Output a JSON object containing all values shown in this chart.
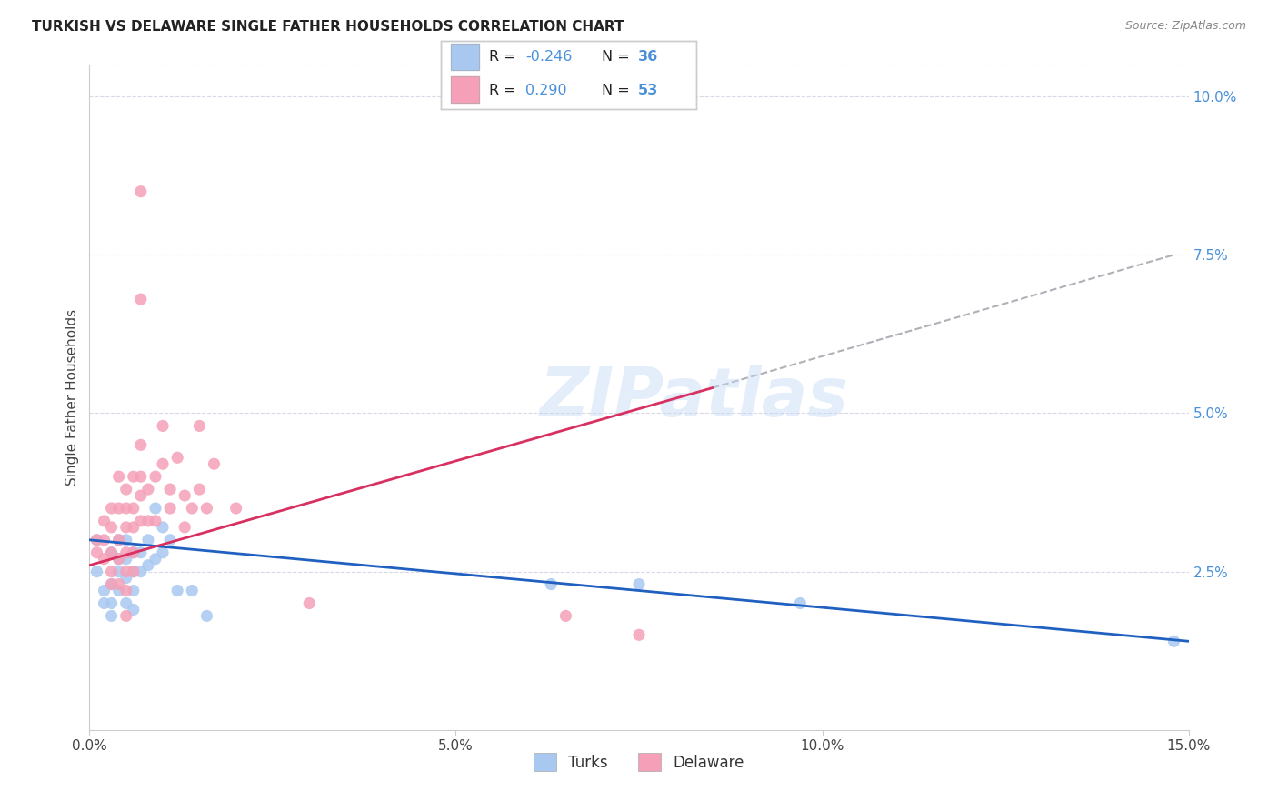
{
  "title": "TURKISH VS DELAWARE SINGLE FATHER HOUSEHOLDS CORRELATION CHART",
  "source": "Source: ZipAtlas.com",
  "ylabel": "Single Father Households",
  "xlabel_turks": "Turks",
  "xlabel_delaware": "Delaware",
  "watermark": "ZIPatlas",
  "xlim": [
    0.0,
    0.15
  ],
  "ylim": [
    0.0,
    0.105
  ],
  "xticks": [
    0.0,
    0.05,
    0.1,
    0.15
  ],
  "yticks_right": [
    0.025,
    0.05,
    0.075,
    0.1
  ],
  "ytick_labels_right": [
    "2.5%",
    "5.0%",
    "7.5%",
    "10.0%"
  ],
  "xtick_labels": [
    "0.0%",
    "5.0%",
    "10.0%",
    "15.0%"
  ],
  "turks_color": "#a8c8f0",
  "delaware_color": "#f5a0b8",
  "turks_line_color": "#2060c0",
  "delaware_line_color": "#d83060",
  "background_color": "#ffffff",
  "grid_color": "#d8d8e8",
  "turks_scatter": [
    [
      0.001,
      0.03
    ],
    [
      0.001,
      0.025
    ],
    [
      0.002,
      0.022
    ],
    [
      0.002,
      0.02
    ],
    [
      0.003,
      0.028
    ],
    [
      0.003,
      0.023
    ],
    [
      0.003,
      0.02
    ],
    [
      0.003,
      0.018
    ],
    [
      0.004,
      0.03
    ],
    [
      0.004,
      0.027
    ],
    [
      0.004,
      0.025
    ],
    [
      0.004,
      0.022
    ],
    [
      0.005,
      0.03
    ],
    [
      0.005,
      0.027
    ],
    [
      0.005,
      0.024
    ],
    [
      0.005,
      0.02
    ],
    [
      0.006,
      0.028
    ],
    [
      0.006,
      0.025
    ],
    [
      0.006,
      0.022
    ],
    [
      0.006,
      0.019
    ],
    [
      0.007,
      0.028
    ],
    [
      0.007,
      0.025
    ],
    [
      0.008,
      0.03
    ],
    [
      0.008,
      0.026
    ],
    [
      0.009,
      0.035
    ],
    [
      0.009,
      0.027
    ],
    [
      0.01,
      0.032
    ],
    [
      0.01,
      0.028
    ],
    [
      0.011,
      0.03
    ],
    [
      0.012,
      0.022
    ],
    [
      0.014,
      0.022
    ],
    [
      0.016,
      0.018
    ],
    [
      0.063,
      0.023
    ],
    [
      0.075,
      0.023
    ],
    [
      0.097,
      0.02
    ],
    [
      0.148,
      0.014
    ]
  ],
  "delaware_scatter": [
    [
      0.001,
      0.03
    ],
    [
      0.001,
      0.028
    ],
    [
      0.002,
      0.033
    ],
    [
      0.002,
      0.03
    ],
    [
      0.002,
      0.027
    ],
    [
      0.003,
      0.035
    ],
    [
      0.003,
      0.032
    ],
    [
      0.003,
      0.028
    ],
    [
      0.003,
      0.025
    ],
    [
      0.003,
      0.023
    ],
    [
      0.004,
      0.04
    ],
    [
      0.004,
      0.035
    ],
    [
      0.004,
      0.03
    ],
    [
      0.004,
      0.027
    ],
    [
      0.004,
      0.023
    ],
    [
      0.005,
      0.038
    ],
    [
      0.005,
      0.035
    ],
    [
      0.005,
      0.032
    ],
    [
      0.005,
      0.028
    ],
    [
      0.005,
      0.025
    ],
    [
      0.005,
      0.022
    ],
    [
      0.005,
      0.018
    ],
    [
      0.006,
      0.04
    ],
    [
      0.006,
      0.035
    ],
    [
      0.006,
      0.032
    ],
    [
      0.006,
      0.028
    ],
    [
      0.006,
      0.025
    ],
    [
      0.007,
      0.045
    ],
    [
      0.007,
      0.04
    ],
    [
      0.007,
      0.037
    ],
    [
      0.007,
      0.033
    ],
    [
      0.007,
      0.085
    ],
    [
      0.007,
      0.068
    ],
    [
      0.008,
      0.038
    ],
    [
      0.008,
      0.033
    ],
    [
      0.009,
      0.04
    ],
    [
      0.009,
      0.033
    ],
    [
      0.01,
      0.048
    ],
    [
      0.01,
      0.042
    ],
    [
      0.011,
      0.038
    ],
    [
      0.011,
      0.035
    ],
    [
      0.012,
      0.043
    ],
    [
      0.013,
      0.037
    ],
    [
      0.013,
      0.032
    ],
    [
      0.014,
      0.035
    ],
    [
      0.015,
      0.048
    ],
    [
      0.015,
      0.038
    ],
    [
      0.016,
      0.035
    ],
    [
      0.017,
      0.042
    ],
    [
      0.02,
      0.035
    ],
    [
      0.03,
      0.02
    ],
    [
      0.065,
      0.018
    ],
    [
      0.075,
      0.015
    ]
  ],
  "turks_line": [
    0.0,
    0.15
  ],
  "turks_line_y": [
    0.03,
    0.014
  ],
  "delaware_line": [
    0.0,
    0.085
  ],
  "delaware_line_y": [
    0.026,
    0.054
  ],
  "dash_line_x": [
    0.085,
    0.148
  ],
  "dash_line_y": [
    0.054,
    0.075
  ]
}
